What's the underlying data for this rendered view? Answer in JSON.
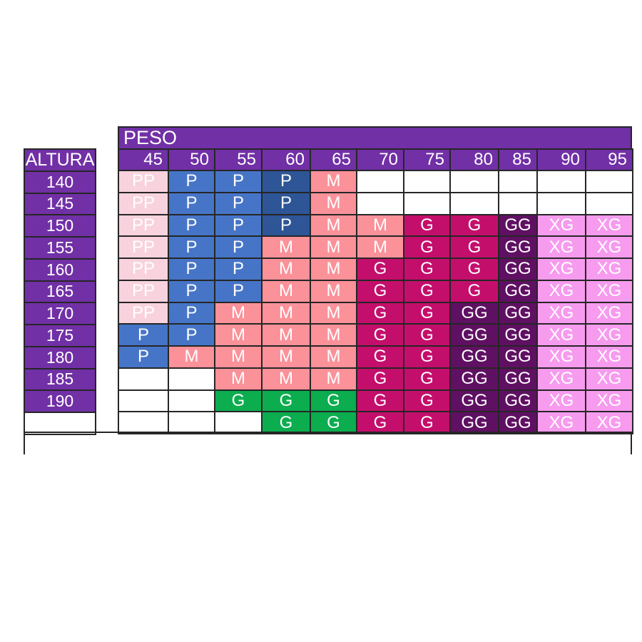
{
  "chart_data": {
    "type": "table",
    "title": "",
    "x_axis_label": "PESO",
    "y_axis_label": "ALTURA",
    "x_categories": [
      "45",
      "50",
      "55",
      "60",
      "65",
      "70",
      "75",
      "80",
      "85",
      "90",
      "95"
    ],
    "labels": {
      "pp": "PP",
      "p": "P",
      "pd": "P",
      "m": "M",
      "g": "G",
      "gg": "GG",
      "xg": "XG",
      "gr": "G"
    },
    "colors": {
      "pp": "#F8D2DD",
      "p": "#4675C8",
      "pd": "#2E5697",
      "m": "#FB9199",
      "g": "#C40E6C",
      "gg": "#5F1062",
      "xg": "#F79BEF",
      "gr": "#0BAD4F",
      "header": "#7130A6",
      "empty": "#FFFFFF",
      "border": "#262626",
      "text": "#FFFFFF"
    },
    "rows": [
      {
        "height": "140",
        "cells": [
          "pp",
          "p",
          "p",
          "pd",
          "m",
          "",
          "",
          "",
          "",
          "",
          ""
        ]
      },
      {
        "height": "145",
        "cells": [
          "pp",
          "p",
          "p",
          "pd",
          "m",
          "",
          "",
          "",
          "",
          "",
          ""
        ]
      },
      {
        "height": "150",
        "cells": [
          "pp",
          "p",
          "p",
          "pd",
          "m",
          "m",
          "g",
          "g",
          "gg",
          "xg",
          "xg"
        ]
      },
      {
        "height": "155",
        "cells": [
          "pp",
          "p",
          "p",
          "m",
          "m",
          "m",
          "g",
          "g",
          "gg",
          "xg",
          "xg"
        ]
      },
      {
        "height": "160",
        "cells": [
          "pp",
          "p",
          "p",
          "m",
          "m",
          "g",
          "g",
          "g",
          "gg",
          "xg",
          "xg"
        ]
      },
      {
        "height": "165",
        "cells": [
          "pp",
          "p",
          "p",
          "m",
          "m",
          "g",
          "g",
          "g",
          "gg",
          "xg",
          "xg"
        ]
      },
      {
        "height": "170",
        "cells": [
          "pp",
          "p",
          "m",
          "m",
          "m",
          "g",
          "g",
          "gg",
          "gg",
          "xg",
          "xg"
        ]
      },
      {
        "height": "175",
        "cells": [
          "p",
          "p",
          "m",
          "m",
          "m",
          "g",
          "g",
          "gg",
          "gg",
          "xg",
          "xg"
        ]
      },
      {
        "height": "180",
        "cells": [
          "p",
          "m",
          "m",
          "m",
          "m",
          "g",
          "g",
          "gg",
          "gg",
          "xg",
          "xg"
        ]
      },
      {
        "height": "185",
        "cells": [
          "",
          "",
          "m",
          "m",
          "m",
          "g",
          "g",
          "gg",
          "gg",
          "xg",
          "xg"
        ]
      },
      {
        "height": "190",
        "cells": [
          "",
          "",
          "gr",
          "gr",
          "gr",
          "g",
          "g",
          "gg",
          "gg",
          "xg",
          "xg"
        ]
      },
      {
        "height": "",
        "cells": [
          "",
          "",
          "",
          "gr",
          "gr",
          "g",
          "g",
          "gg",
          "gg",
          "xg",
          "xg"
        ]
      }
    ]
  }
}
